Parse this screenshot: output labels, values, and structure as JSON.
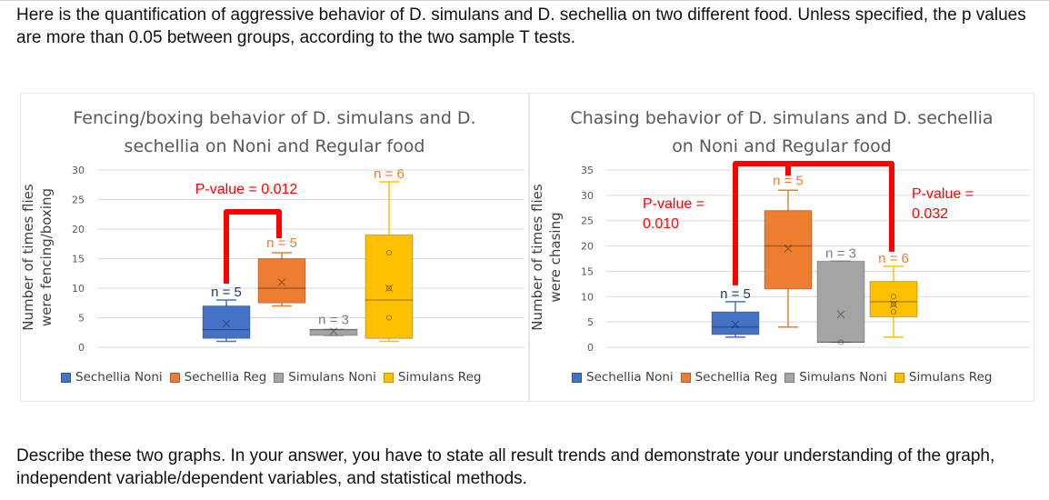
{
  "intro_text": "Here is the quantification of aggressive behavior of D. simulans and D. sechellia on two different food. Unless specified, the p values are more than 0.05 between groups, according to the two sample T tests.",
  "question_text": "Describe these two graphs. In your answer, you have to state all result trends and demonstrate your understanding of the graph, independent variable/dependent variables, and statistical methods.",
  "colors": {
    "sechellia_noni": "#4472C4",
    "sechellia_reg": "#ED7D31",
    "simulans_noni": "#A5A5A5",
    "simulans_reg": "#FFC000",
    "pvalue": "#FF0000",
    "significance_bar": "#FF0000"
  },
  "chart_data": [
    {
      "type": "box",
      "title_lines": [
        "Fencing/boxing behavior of D. simulans and D.",
        "sechellia on Noni and Regular food"
      ],
      "ylabel_lines": [
        "Number of times flies",
        "were fencing/boxing"
      ],
      "ylim": [
        0,
        30
      ],
      "yticks": [
        "0",
        "5",
        "10",
        "15",
        "20",
        "25",
        "30"
      ],
      "grid": true,
      "legend_position": "bottom",
      "series": [
        {
          "name": "Sechellia Noni",
          "color": "#4472C4",
          "min": 1,
          "q1": 1.5,
          "median": 3,
          "mean": 4,
          "q3": 7,
          "max": 8,
          "n_label": "n = 5",
          "points": []
        },
        {
          "name": "Sechellia Reg",
          "color": "#ED7D31",
          "min": 7,
          "q1": 7.5,
          "median": 10,
          "mean": 11,
          "q3": 15,
          "max": 16,
          "n_label": "n = 5",
          "points": []
        },
        {
          "name": "Simulans Noni",
          "color": "#A5A5A5",
          "min": 2,
          "q1": 2,
          "median": 3,
          "mean": 2.7,
          "q3": 3,
          "max": 3,
          "n_label": "n = 3",
          "points": []
        },
        {
          "name": "Simulans Reg",
          "color": "#FFC000",
          "min": 1,
          "q1": 1.5,
          "median": 8,
          "mean": 10,
          "q3": 19,
          "max": 28,
          "n_label": "n = 6",
          "points": [
            5,
            10,
            16
          ]
        }
      ],
      "annotations": [
        {
          "text": "P-value = 0.012",
          "groups": [
            "Sechellia Noni",
            "Sechellia Reg"
          ]
        }
      ]
    },
    {
      "type": "box",
      "title_lines": [
        "Chasing behavior of D. simulans and D. sechellia",
        "on Noni and Regular food"
      ],
      "ylabel_lines": [
        "Number of times flies",
        "were chasing"
      ],
      "ylim": [
        0,
        35
      ],
      "yticks": [
        "0",
        "5",
        "10",
        "15",
        "20",
        "25",
        "30",
        "35"
      ],
      "grid": true,
      "legend_position": "bottom",
      "series": [
        {
          "name": "Sechellia Noni",
          "color": "#4472C4",
          "min": 2,
          "q1": 2.5,
          "median": 4,
          "mean": 4.5,
          "q3": 7,
          "max": 9,
          "n_label": "n = 5",
          "points": []
        },
        {
          "name": "Sechellia Reg",
          "color": "#ED7D31",
          "min": 4,
          "q1": 11.5,
          "median": 20,
          "mean": 19.5,
          "q3": 27,
          "max": 31,
          "n_label": "n = 5",
          "points": []
        },
        {
          "name": "Simulans Noni",
          "color": "#A5A5A5",
          "min": 1,
          "q1": 1,
          "median": 1,
          "mean": 6.5,
          "q3": 17,
          "max": 17,
          "n_label": "n = 3",
          "points": [
            1
          ]
        },
        {
          "name": "Simulans Reg",
          "color": "#FFC000",
          "min": 2,
          "q1": 6,
          "median": 9,
          "mean": 8.5,
          "q3": 13,
          "max": 16,
          "n_label": "n = 6",
          "points": [
            7,
            8.5,
            10
          ]
        }
      ],
      "annotations": [
        {
          "text_lines": [
            "P-value =",
            "0.010"
          ],
          "groups": [
            "Sechellia Noni",
            "Sechellia Reg"
          ]
        },
        {
          "text_lines": [
            "P-value =",
            "0.032"
          ],
          "groups": [
            "Sechellia Reg",
            "Simulans Reg"
          ]
        }
      ]
    }
  ]
}
